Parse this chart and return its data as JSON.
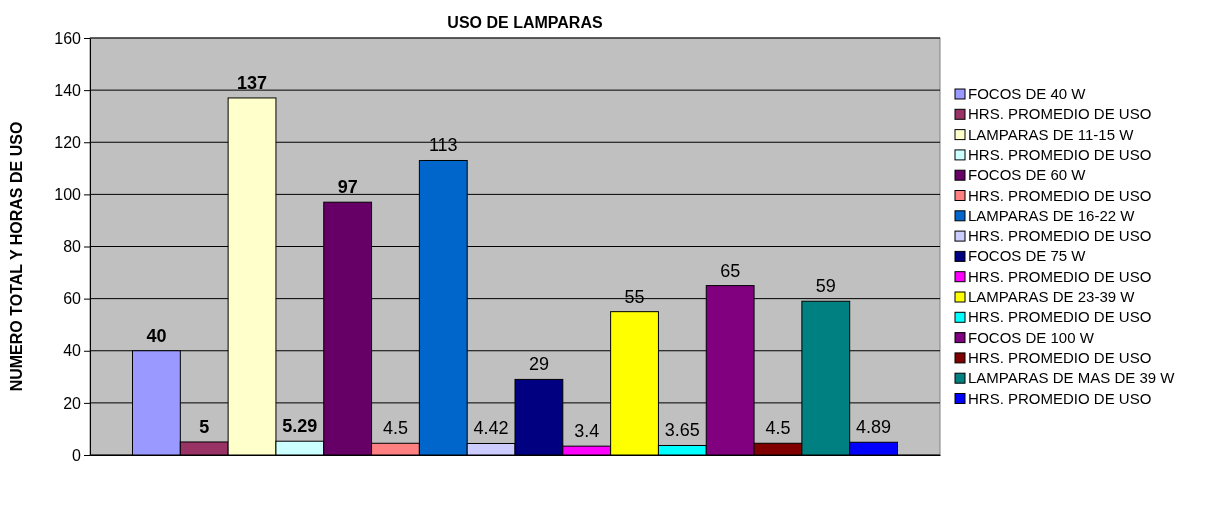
{
  "chart_data": {
    "type": "bar",
    "title": "USO DE LAMPARAS",
    "ylabel": "NUMERO TOTAL Y HORAS DE USO",
    "categories": [
      null
    ],
    "series": [
      {
        "name": "FOCOS DE 40 W",
        "color": "#9999ff",
        "values": [
          40
        ]
      },
      {
        "name": "HRS. PROMEDIO DE USO",
        "color": "#993366",
        "values": [
          5
        ]
      },
      {
        "name": "LAMPARAS DE 11-15 W",
        "color": "#ffffcc",
        "values": [
          137
        ]
      },
      {
        "name": "HRS. PROMEDIO DE USO",
        "color": "#ccffff",
        "values": [
          5.29
        ]
      },
      {
        "name": "FOCOS DE 60 W",
        "color": "#660066",
        "values": [
          97
        ]
      },
      {
        "name": "HRS. PROMEDIO DE USO",
        "color": "#ff8080",
        "values": [
          4.5
        ]
      },
      {
        "name": "LAMPARAS DE 16-22 W",
        "color": "#0066cc",
        "values": [
          113
        ]
      },
      {
        "name": "HRS. PROMEDIO DE USO",
        "color": "#ccccff",
        "values": [
          4.42
        ]
      },
      {
        "name": "FOCOS DE 75 W",
        "color": "#000080",
        "values": [
          29
        ]
      },
      {
        "name": "HRS. PROMEDIO DE USO",
        "color": "#ff00ff",
        "values": [
          3.4
        ]
      },
      {
        "name": "LAMPARAS DE 23-39 W",
        "color": "#ffff00",
        "values": [
          55
        ]
      },
      {
        "name": "HRS. PROMEDIO DE USO",
        "color": "#00ffff",
        "values": [
          3.65
        ]
      },
      {
        "name": "FOCOS DE 100 W",
        "color": "#800080",
        "values": [
          65
        ]
      },
      {
        "name": "HRS. PROMEDIO DE USO",
        "color": "#800000",
        "values": [
          4.5
        ]
      },
      {
        "name": "LAMPARAS DE MAS DE 39 W",
        "color": "#008080",
        "values": [
          59
        ]
      },
      {
        "name": "HRS. PROMEDIO DE USO",
        "color": "#0000ff",
        "values": [
          4.89
        ]
      }
    ],
    "ylim": [
      0,
      160
    ],
    "yticks": [
      0,
      20,
      40,
      60,
      80,
      100,
      120,
      140,
      160
    ],
    "grid": "y",
    "legend": "right",
    "data_labels": true
  }
}
